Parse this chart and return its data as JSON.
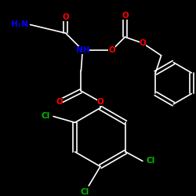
{
  "background_color": "#000000",
  "bond_color": "#ffffff",
  "atom_colors": {
    "O": "#ff0000",
    "N": "#0000ff",
    "Cl": "#00bb00",
    "C": "#ffffff"
  },
  "figsize": [
    2.5,
    2.5
  ],
  "dpi": 100
}
